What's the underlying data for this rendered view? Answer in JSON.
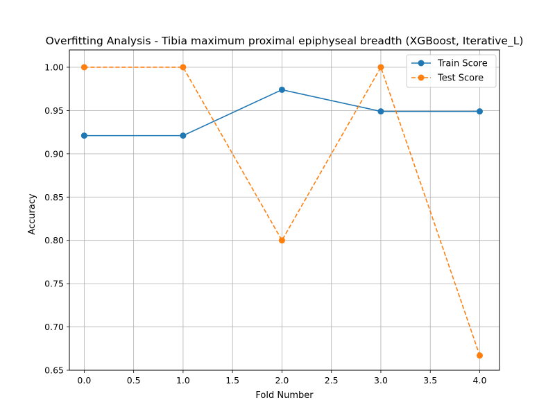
{
  "chart_data": {
    "type": "line",
    "title": "Overfitting Analysis - Tibia maximum proximal epiphyseal breadth (XGBoost, Iterative_L)",
    "xlabel": "Fold Number",
    "ylabel": "Accuracy",
    "x": [
      0,
      1,
      2,
      3,
      4
    ],
    "xlim": [
      -0.15,
      4.2
    ],
    "ylim": [
      0.65,
      1.02
    ],
    "xticks": [
      0.0,
      0.5,
      1.0,
      1.5,
      2.0,
      2.5,
      3.0,
      3.5,
      4.0
    ],
    "yticks": [
      0.65,
      0.7,
      0.75,
      0.8,
      0.85,
      0.9,
      0.95,
      1.0
    ],
    "xtick_labels": [
      "0.0",
      "0.5",
      "1.0",
      "1.5",
      "2.0",
      "2.5",
      "3.0",
      "3.5",
      "4.0"
    ],
    "ytick_labels": [
      "0.65",
      "0.70",
      "0.75",
      "0.80",
      "0.85",
      "0.90",
      "0.95",
      "1.00"
    ],
    "grid": true,
    "legend_position": "top-right",
    "series": [
      {
        "name": "Train Score",
        "values": [
          0.921,
          0.921,
          0.974,
          0.949,
          0.949
        ],
        "color": "#1f77b4",
        "style": "solid"
      },
      {
        "name": "Test Score",
        "values": [
          1.0,
          1.0,
          0.8,
          1.0,
          0.667
        ],
        "color": "#ff7f0e",
        "style": "dashed"
      }
    ]
  }
}
